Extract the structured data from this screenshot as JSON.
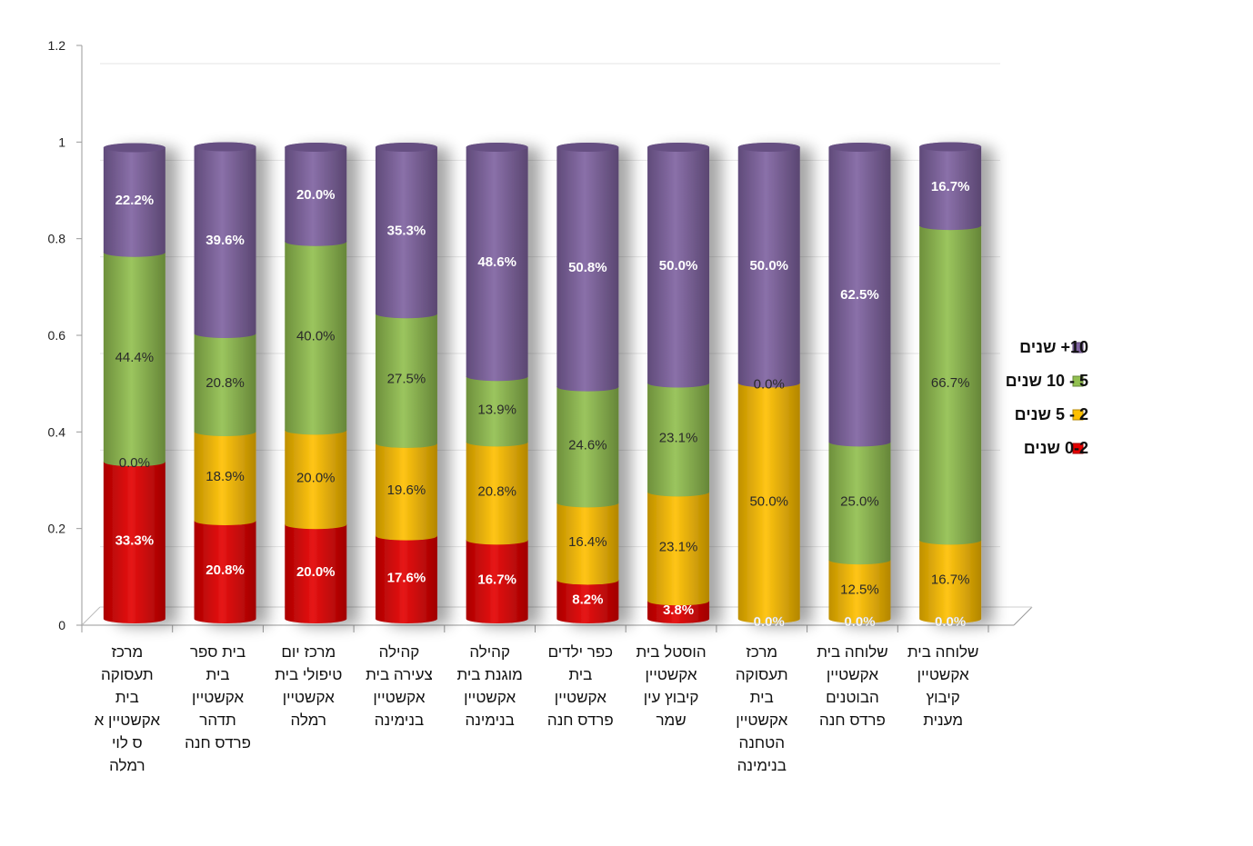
{
  "chart_data": {
    "type": "bar",
    "stacked": true,
    "style": "3d-cylinder",
    "ylim": [
      0,
      1.2
    ],
    "yticks": [
      "0",
      "0.2",
      "0.4",
      "0.6",
      "0.8",
      "1",
      "1.2"
    ],
    "ytick_values": [
      0,
      0.2,
      0.4,
      0.6,
      0.8,
      1.0,
      1.2
    ],
    "grid": true,
    "legend_position": "right",
    "categories": [
      [
        "מרכז",
        "תעסוקה",
        "בית",
        "אקשטיין א",
        "ס לוי",
        "רמלה"
      ],
      [
        "בית ספר",
        "בית",
        "אקשטיין",
        "תדהר",
        "פרדס חנה"
      ],
      [
        "מרכז יום",
        "טיפולי בית",
        "אקשטיין",
        "רמלה"
      ],
      [
        "קהילה",
        "צעירה בית",
        "אקשטיין",
        "בנימינה"
      ],
      [
        "קהילה",
        "מוגנת בית",
        "אקשטיין",
        "בנימינה"
      ],
      [
        "כפר ילדים",
        "בית",
        "אקשטיין",
        "פרדס חנה"
      ],
      [
        "הוסטל בית",
        "אקשטיין",
        "קיבוץ עין",
        "שמר"
      ],
      [
        "מרכז",
        "תעסוקה",
        "בית",
        "אקשטיין",
        "הטחנה",
        "בנימינה"
      ],
      [
        "שלוחה בית",
        "אקשטיין",
        "הבוטנים",
        "פרדס חנה"
      ],
      [
        "שלוחה בית",
        "אקשטיין",
        "קיבוץ",
        "מענית"
      ]
    ],
    "series": [
      {
        "name": "0-2 שנים",
        "color": "#e40000",
        "values": [
          0.333,
          0.208,
          0.2,
          0.176,
          0.167,
          0.082,
          0.038,
          0.0,
          0.0,
          0.0
        ],
        "labels": [
          "33.3%",
          "20.8%",
          "20.0%",
          "17.6%",
          "16.7%",
          "8.2%",
          "3.8%",
          "0.0%",
          "0.0%",
          "0.0%"
        ]
      },
      {
        "name": "2 - 5 שנים",
        "color": "#ffc000",
        "values": [
          0.0,
          0.189,
          0.2,
          0.196,
          0.208,
          0.164,
          0.231,
          0.5,
          0.125,
          0.167
        ],
        "labels": [
          "0.0%",
          "18.9%",
          "20.0%",
          "19.6%",
          "20.8%",
          "16.4%",
          "23.1%",
          "50.0%",
          "12.5%",
          "16.7%"
        ]
      },
      {
        "name": "5 - 10 שנים",
        "color": "#92c050",
        "values": [
          0.444,
          0.208,
          0.4,
          0.275,
          0.139,
          0.246,
          0.231,
          0.0,
          0.25,
          0.667
        ],
        "labels": [
          "44.4%",
          "20.8%",
          "40.0%",
          "27.5%",
          "13.9%",
          "24.6%",
          "23.1%",
          "0.0%",
          "25.0%",
          "66.7%"
        ]
      },
      {
        "name": "10+ שנים",
        "color": "#8064a2",
        "values": [
          0.222,
          0.396,
          0.2,
          0.353,
          0.486,
          0.508,
          0.5,
          0.5,
          0.625,
          0.167
        ],
        "labels": [
          "22.2%",
          "39.6%",
          "20.0%",
          "35.3%",
          "48.6%",
          "50.8%",
          "50.0%",
          "50.0%",
          "62.5%",
          "16.7%"
        ]
      }
    ],
    "legend_order": [
      3,
      2,
      1,
      0
    ]
  }
}
